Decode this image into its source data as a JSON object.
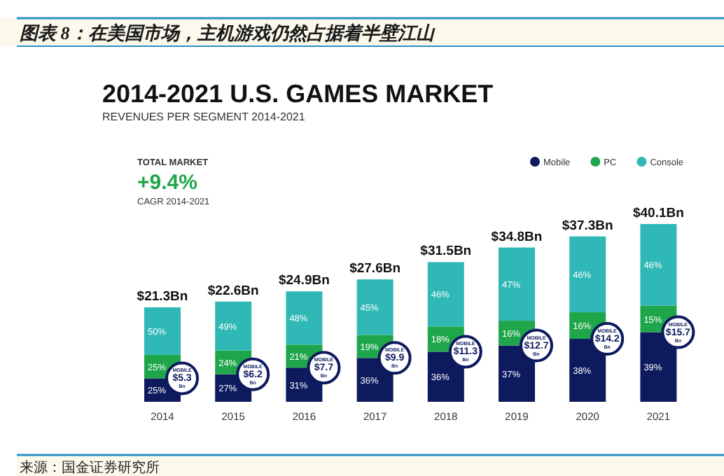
{
  "chart_data": {
    "type": "bar",
    "stacked": true,
    "title": "图表 8：在美国市场，主机游戏仍然占据着半壁江山",
    "subtitle": "2014-2021 U.S. GAMES MARKET",
    "categories": [
      "2014",
      "2015",
      "2016",
      "2017",
      "2018",
      "2019",
      "2020",
      "2021"
    ],
    "series": [
      {
        "name": "Mobile",
        "color": "#0d1a5e",
        "values": [
          5.3,
          6.2,
          7.7,
          9.9,
          11.3,
          12.7,
          14.2,
          15.7
        ],
        "value_labels": [
          "MOBILE $5.3 Bn",
          "MOBILE $6.2 Bn",
          "MOBILE $7.7 Bn",
          "MOBILE $9.9 Bn",
          "MOBILE $11.3 Bn",
          "MOBILE $12.7 Bn",
          "MOBILE $14.2 Bn",
          "MOBILE $15.7 Bn"
        ]
      },
      {
        "name": "PC",
        "color": "#1fa64a",
        "values": [
          5.3,
          5.4,
          5.2,
          5.2,
          5.7,
          5.6,
          6.0,
          6.0
        ]
      },
      {
        "name": "Console",
        "color": "#2fb8b5",
        "values": [
          10.7,
          11.0,
          12.0,
          12.5,
          14.5,
          16.5,
          17.1,
          18.4
        ]
      }
    ],
    "totals": [
      "$21.3Bn",
      "$22.6Bn",
      "$24.9Bn",
      "$27.6Bn",
      "$31.5Bn",
      "$34.8Bn",
      "$37.3Bn",
      "$40.1Bn"
    ],
    "legend": "top right",
    "annotations": [
      "REVENUES PER SEGMENT 2014-2021",
      "TOTAL MARKET",
      "+9.4%",
      "CAGR 2014-2021",
      "25%",
      "27%",
      "31%",
      "36%",
      "36%",
      "37%",
      "38%",
      "39%",
      "25%",
      "24%",
      "21%",
      "19%",
      "18%",
      "16%",
      "16%",
      "15%",
      "50%",
      "49%",
      "48%",
      "45%",
      "46%",
      "47%",
      "46%",
      "46%",
      "来源：国金证券研究所"
    ]
  }
}
